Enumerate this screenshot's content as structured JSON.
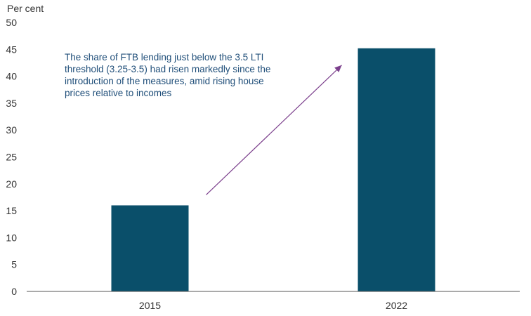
{
  "chart_data": {
    "type": "bar",
    "categories": [
      "2015",
      "2022"
    ],
    "values": [
      16,
      45.2
    ],
    "ylabel": "Per cent",
    "ylim": [
      0,
      50
    ],
    "yticks": [
      0,
      5,
      10,
      15,
      20,
      25,
      30,
      35,
      40,
      45,
      50
    ],
    "grid": false,
    "bar_color": "#0a4f6a",
    "arrow_color": "#7b3f8c",
    "annotation": {
      "lines": [
        "The share of FTB lending just below the 3.5 LTI",
        "threshold (3.25-3.5) had risen markedly since the",
        "introduction  of the measures, amid rising house",
        "prices relative to incomes"
      ],
      "color": "#1f4e79"
    }
  }
}
